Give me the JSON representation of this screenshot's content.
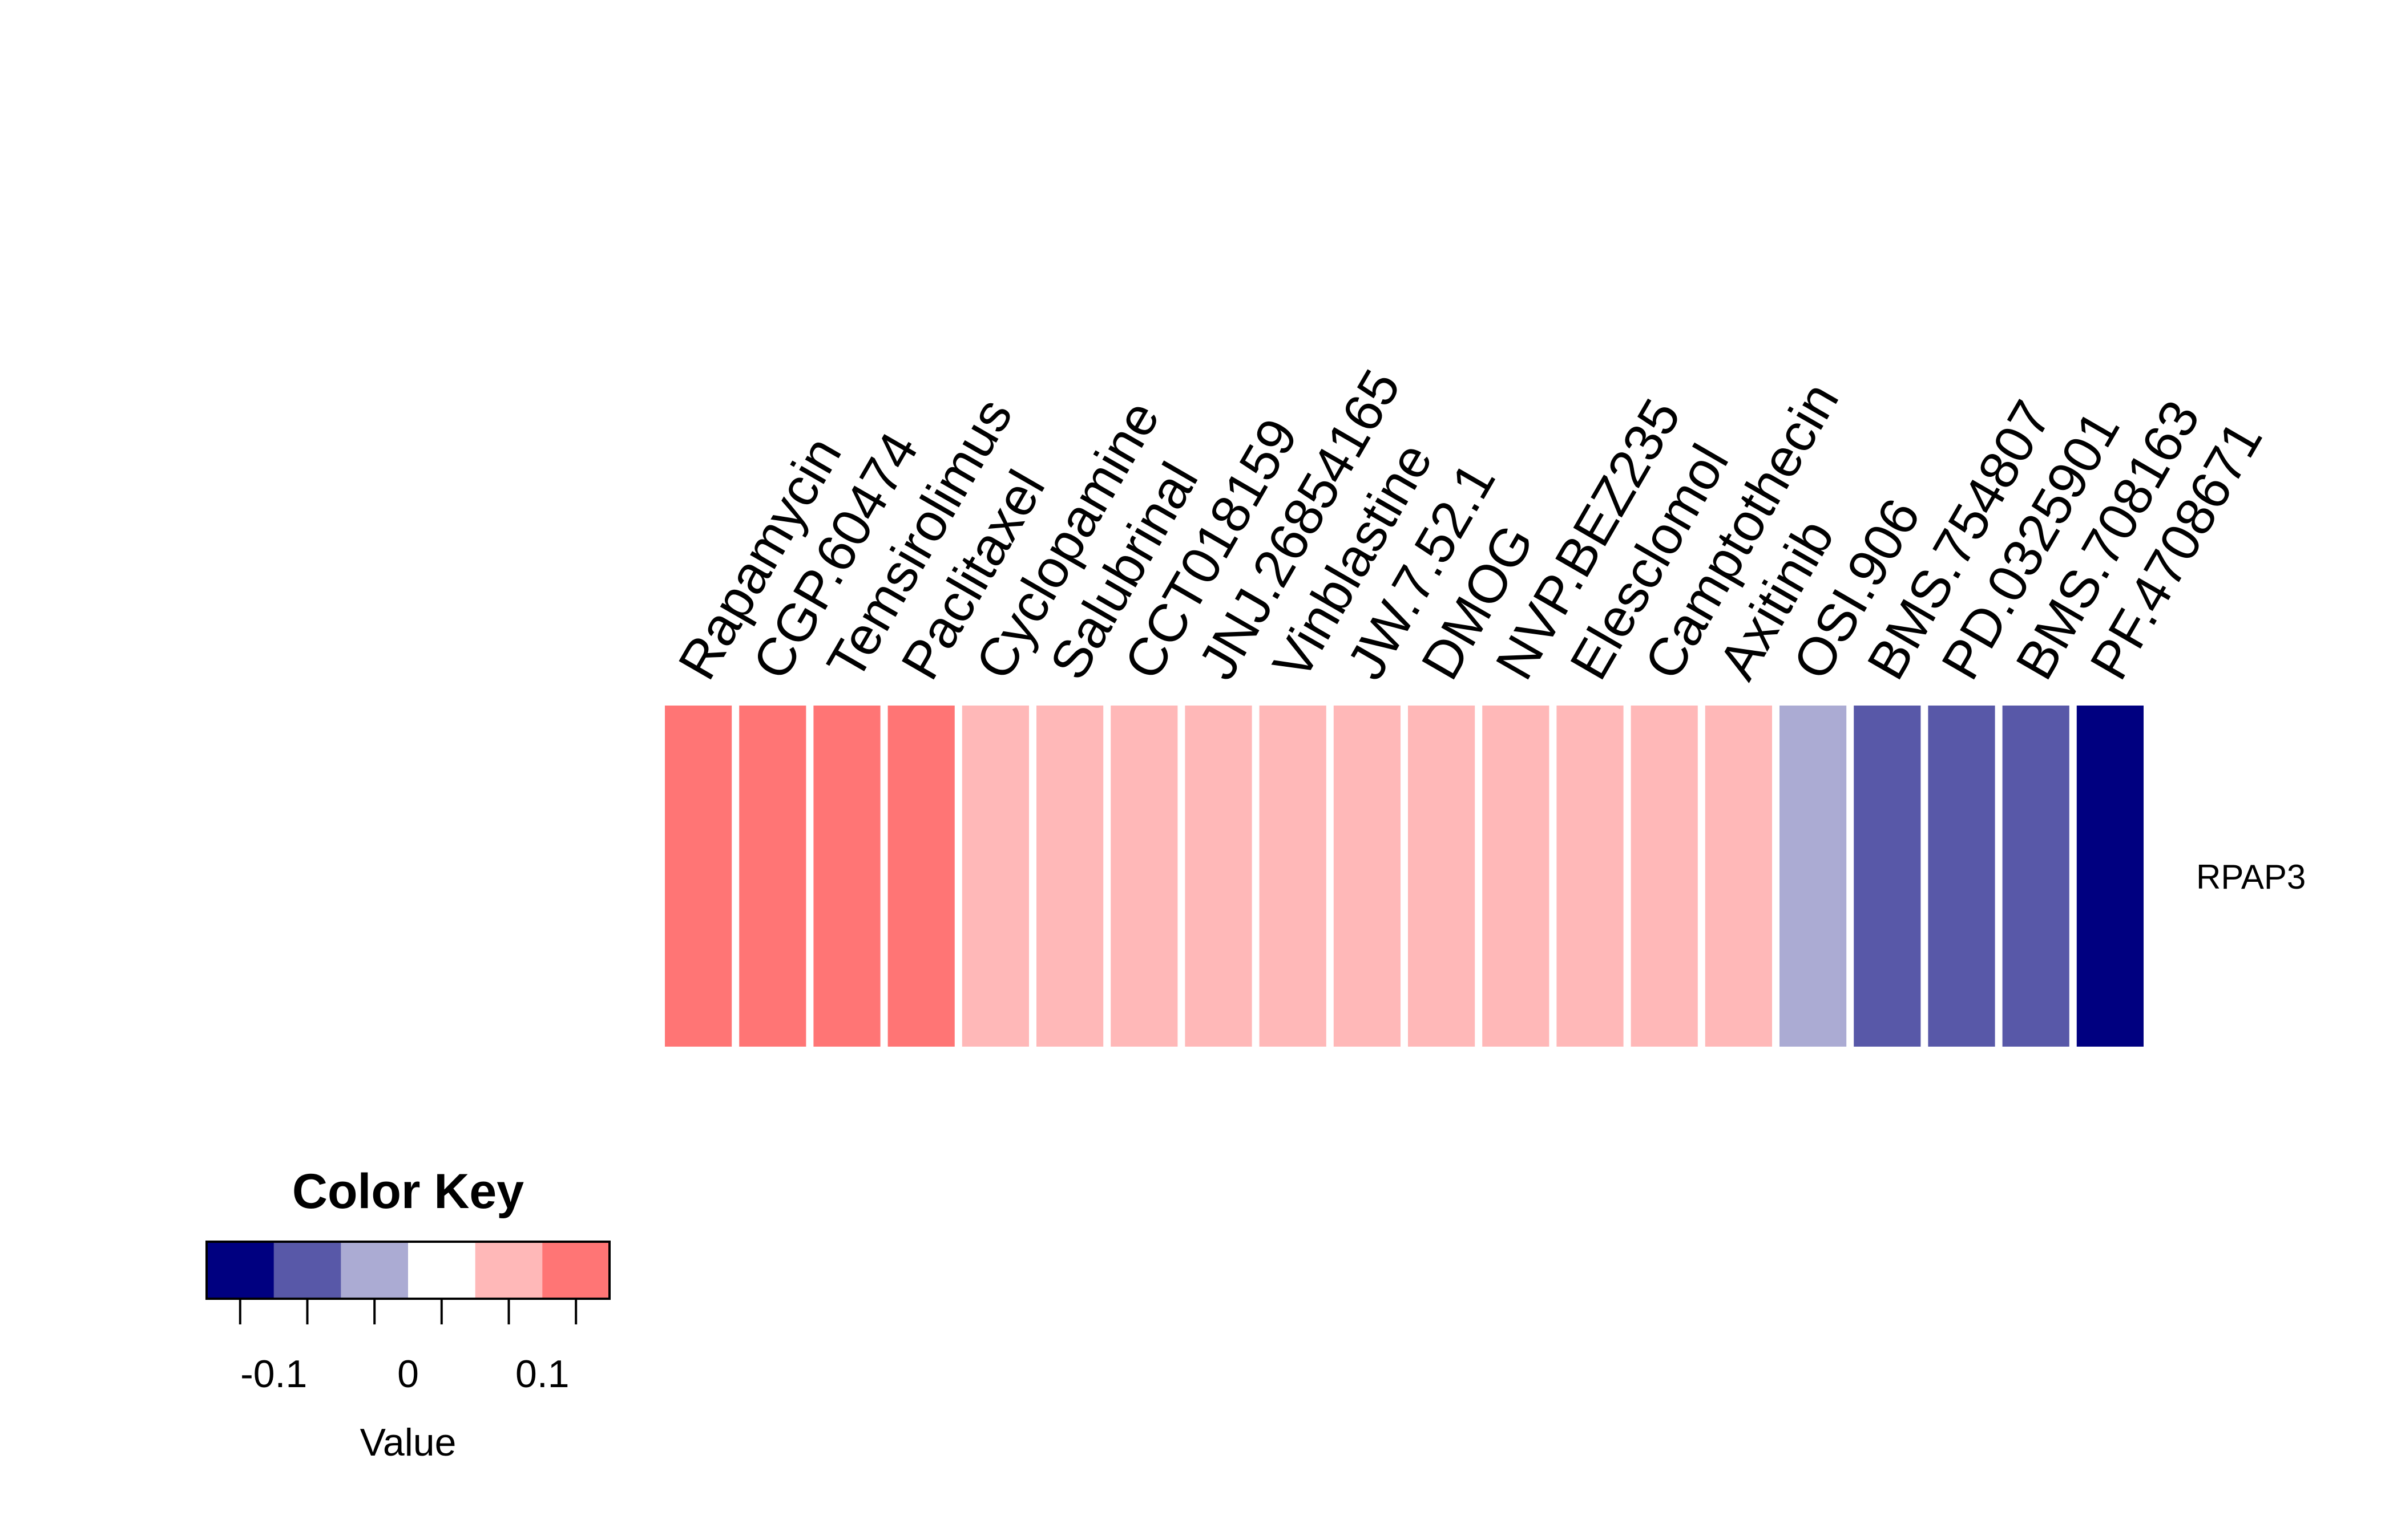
{
  "chart_data": {
    "type": "heatmap",
    "rows": [
      "RPAP3"
    ],
    "columns": [
      "Rapamycin",
      "CGP.60474",
      "Temsirolimus",
      "Paclitaxel",
      "Cyclopamine",
      "Salubrinal",
      "CCT018159",
      "JNJ.26854165",
      "Vinblastine",
      "JW.7.52.1",
      "DMOG",
      "NVP.BEZ235",
      "Elesclomol",
      "Camptothecin",
      "Axitinib",
      "OSI.906",
      "BMS.754807",
      "PD.0325901",
      "BMS.708163",
      "PF.4708671"
    ],
    "values": [
      [
        0.13,
        0.13,
        0.13,
        0.13,
        0.08,
        0.08,
        0.08,
        0.08,
        0.08,
        0.08,
        0.08,
        0.08,
        0.08,
        0.08,
        0.08,
        -0.05,
        -0.08,
        -0.08,
        -0.08,
        -0.13
      ]
    ],
    "color_key": {
      "title": "Color Key",
      "xlabel": "Value",
      "range": [
        -0.15,
        0.15
      ],
      "breaks": [
        -0.15,
        -0.1,
        -0.05,
        0,
        0.05,
        0.1,
        0.15
      ],
      "colors": [
        "#000080",
        "#5858a8",
        "#ababd3",
        "#ffffff",
        "#ffb8b8",
        "#ff7575",
        "#ff3333"
      ],
      "ticks": [
        -0.125,
        -0.075,
        -0.025,
        0.025,
        0.075,
        0.125
      ],
      "tick_labels": [
        {
          "value": -0.1,
          "label": "-0.1"
        },
        {
          "value": 0,
          "label": "0"
        },
        {
          "value": 0.1,
          "label": "0.1"
        }
      ]
    }
  }
}
